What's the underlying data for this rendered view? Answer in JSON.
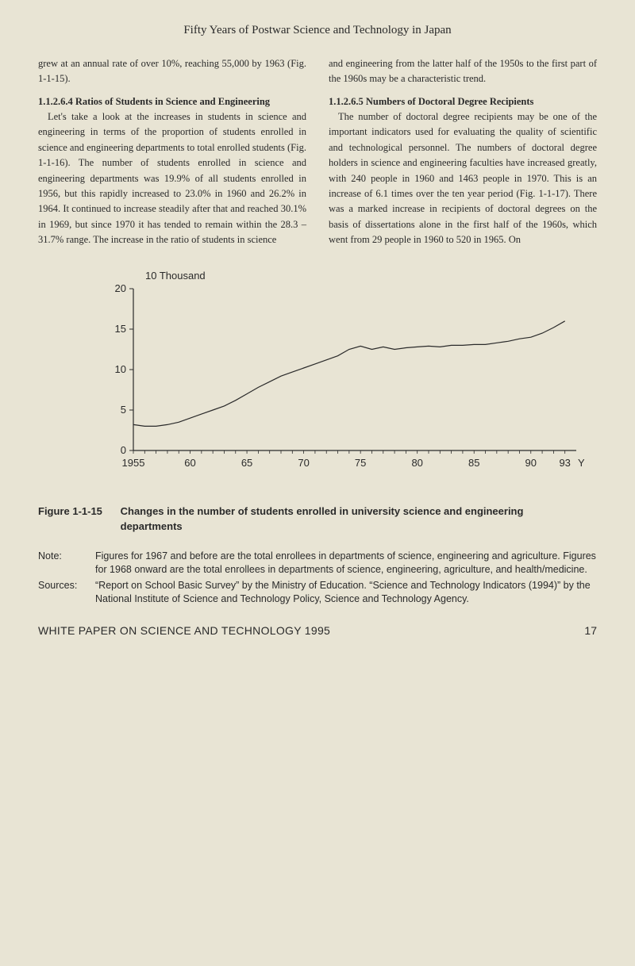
{
  "header": {
    "running_title": "Fifty Years of Postwar Science and Technology in Japan"
  },
  "left_col": {
    "p1": "grew at an annual rate of over 10%, reaching 55,000 by 1963 (Fig. 1-1-15).",
    "h1": "1.1.2.6.4  Ratios of Students in Science and Engineering",
    "p2": "Let's take a look at the increases in students in science and engineering in terms of the proportion of students enrolled in science and engineering departments to total enrolled students (Fig. 1-1-16). The number of students enrolled in science and engineering departments was 19.9% of all students enrolled in 1956, but this rapidly increased to 23.0% in 1960 and 26.2% in 1964. It continued to increase steadily after that and reached 30.1% in 1969, but since 1970 it has tended to remain within the 28.3 – 31.7% range. The increase in the ratio of students in science"
  },
  "right_col": {
    "p1": "and engineering from the latter half of the 1950s to the first part of the 1960s may be a characteristic trend.",
    "h1": "1.1.2.6.5  Numbers of Doctoral Degree Recipients",
    "p2": "The number of doctoral degree recipients may be one of the important indicators used for evaluating the quality of scientific and technological personnel. The numbers of doctoral degree holders in science and engineering faculties have increased greatly, with 240 people in 1960 and 1463 people in 1970. This is an increase of 6.1 times over the ten year period (Fig. 1-1-17). There was a marked increase in recipients of doctoral degrees on the basis of dissertations alone in the first half of the 1960s, which went from 29 people in 1960 to 520 in 1965. On"
  },
  "chart": {
    "type": "line",
    "y_title": "10 Thousand",
    "x_axis_label_suffix": "Year",
    "x_ticks": [
      1955,
      60,
      65,
      70,
      75,
      80,
      85,
      90,
      93
    ],
    "y_ticks": [
      0,
      5,
      10,
      15,
      20
    ],
    "ylim": [
      0,
      20
    ],
    "xlim": [
      1955,
      1994
    ],
    "series_color": "#2a2a2a",
    "line_width": 1.2,
    "axis_color": "#2a2a2a",
    "background_color": "#e8e4d4",
    "data": [
      {
        "x": 1955,
        "y": 3.2
      },
      {
        "x": 1956,
        "y": 3.0
      },
      {
        "x": 1957,
        "y": 3.0
      },
      {
        "x": 1958,
        "y": 3.2
      },
      {
        "x": 1959,
        "y": 3.5
      },
      {
        "x": 1960,
        "y": 4.0
      },
      {
        "x": 1961,
        "y": 4.5
      },
      {
        "x": 1962,
        "y": 5.0
      },
      {
        "x": 1963,
        "y": 5.5
      },
      {
        "x": 1964,
        "y": 6.2
      },
      {
        "x": 1965,
        "y": 7.0
      },
      {
        "x": 1966,
        "y": 7.8
      },
      {
        "x": 1967,
        "y": 8.5
      },
      {
        "x": 1968,
        "y": 9.2
      },
      {
        "x": 1969,
        "y": 9.7
      },
      {
        "x": 1970,
        "y": 10.2
      },
      {
        "x": 1971,
        "y": 10.7
      },
      {
        "x": 1972,
        "y": 11.2
      },
      {
        "x": 1973,
        "y": 11.7
      },
      {
        "x": 1974,
        "y": 12.5
      },
      {
        "x": 1975,
        "y": 12.9
      },
      {
        "x": 1976,
        "y": 12.5
      },
      {
        "x": 1977,
        "y": 12.8
      },
      {
        "x": 1978,
        "y": 12.5
      },
      {
        "x": 1979,
        "y": 12.7
      },
      {
        "x": 1980,
        "y": 12.8
      },
      {
        "x": 1981,
        "y": 12.9
      },
      {
        "x": 1982,
        "y": 12.8
      },
      {
        "x": 1983,
        "y": 13.0
      },
      {
        "x": 1984,
        "y": 13.0
      },
      {
        "x": 1985,
        "y": 13.1
      },
      {
        "x": 1986,
        "y": 13.1
      },
      {
        "x": 1987,
        "y": 13.3
      },
      {
        "x": 1988,
        "y": 13.5
      },
      {
        "x": 1989,
        "y": 13.8
      },
      {
        "x": 1990,
        "y": 14.0
      },
      {
        "x": 1991,
        "y": 14.5
      },
      {
        "x": 1992,
        "y": 15.2
      },
      {
        "x": 1993,
        "y": 16.0
      }
    ]
  },
  "figure": {
    "label": "Figure 1-1-15",
    "title": "Changes in the number of students enrolled in university science and engineering departments"
  },
  "notes": {
    "note_label": "Note:",
    "note_text": "Figures for 1967 and before are the total enrollees in departments of science, engineering and agriculture. Figures for 1968 onward are the total enrollees in departments of science, engineering, agriculture, and health/medicine.",
    "sources_label": "Sources:",
    "sources_text": "“Report on School Basic Survey” by the Ministry of Education. “Science and Technology Indicators (1994)” by the National Institute of Science and Technology Policy, Science and Technology Agency."
  },
  "footer": {
    "title": "WHITE PAPER ON SCIENCE AND TECHNOLOGY 1995",
    "page": "17"
  }
}
